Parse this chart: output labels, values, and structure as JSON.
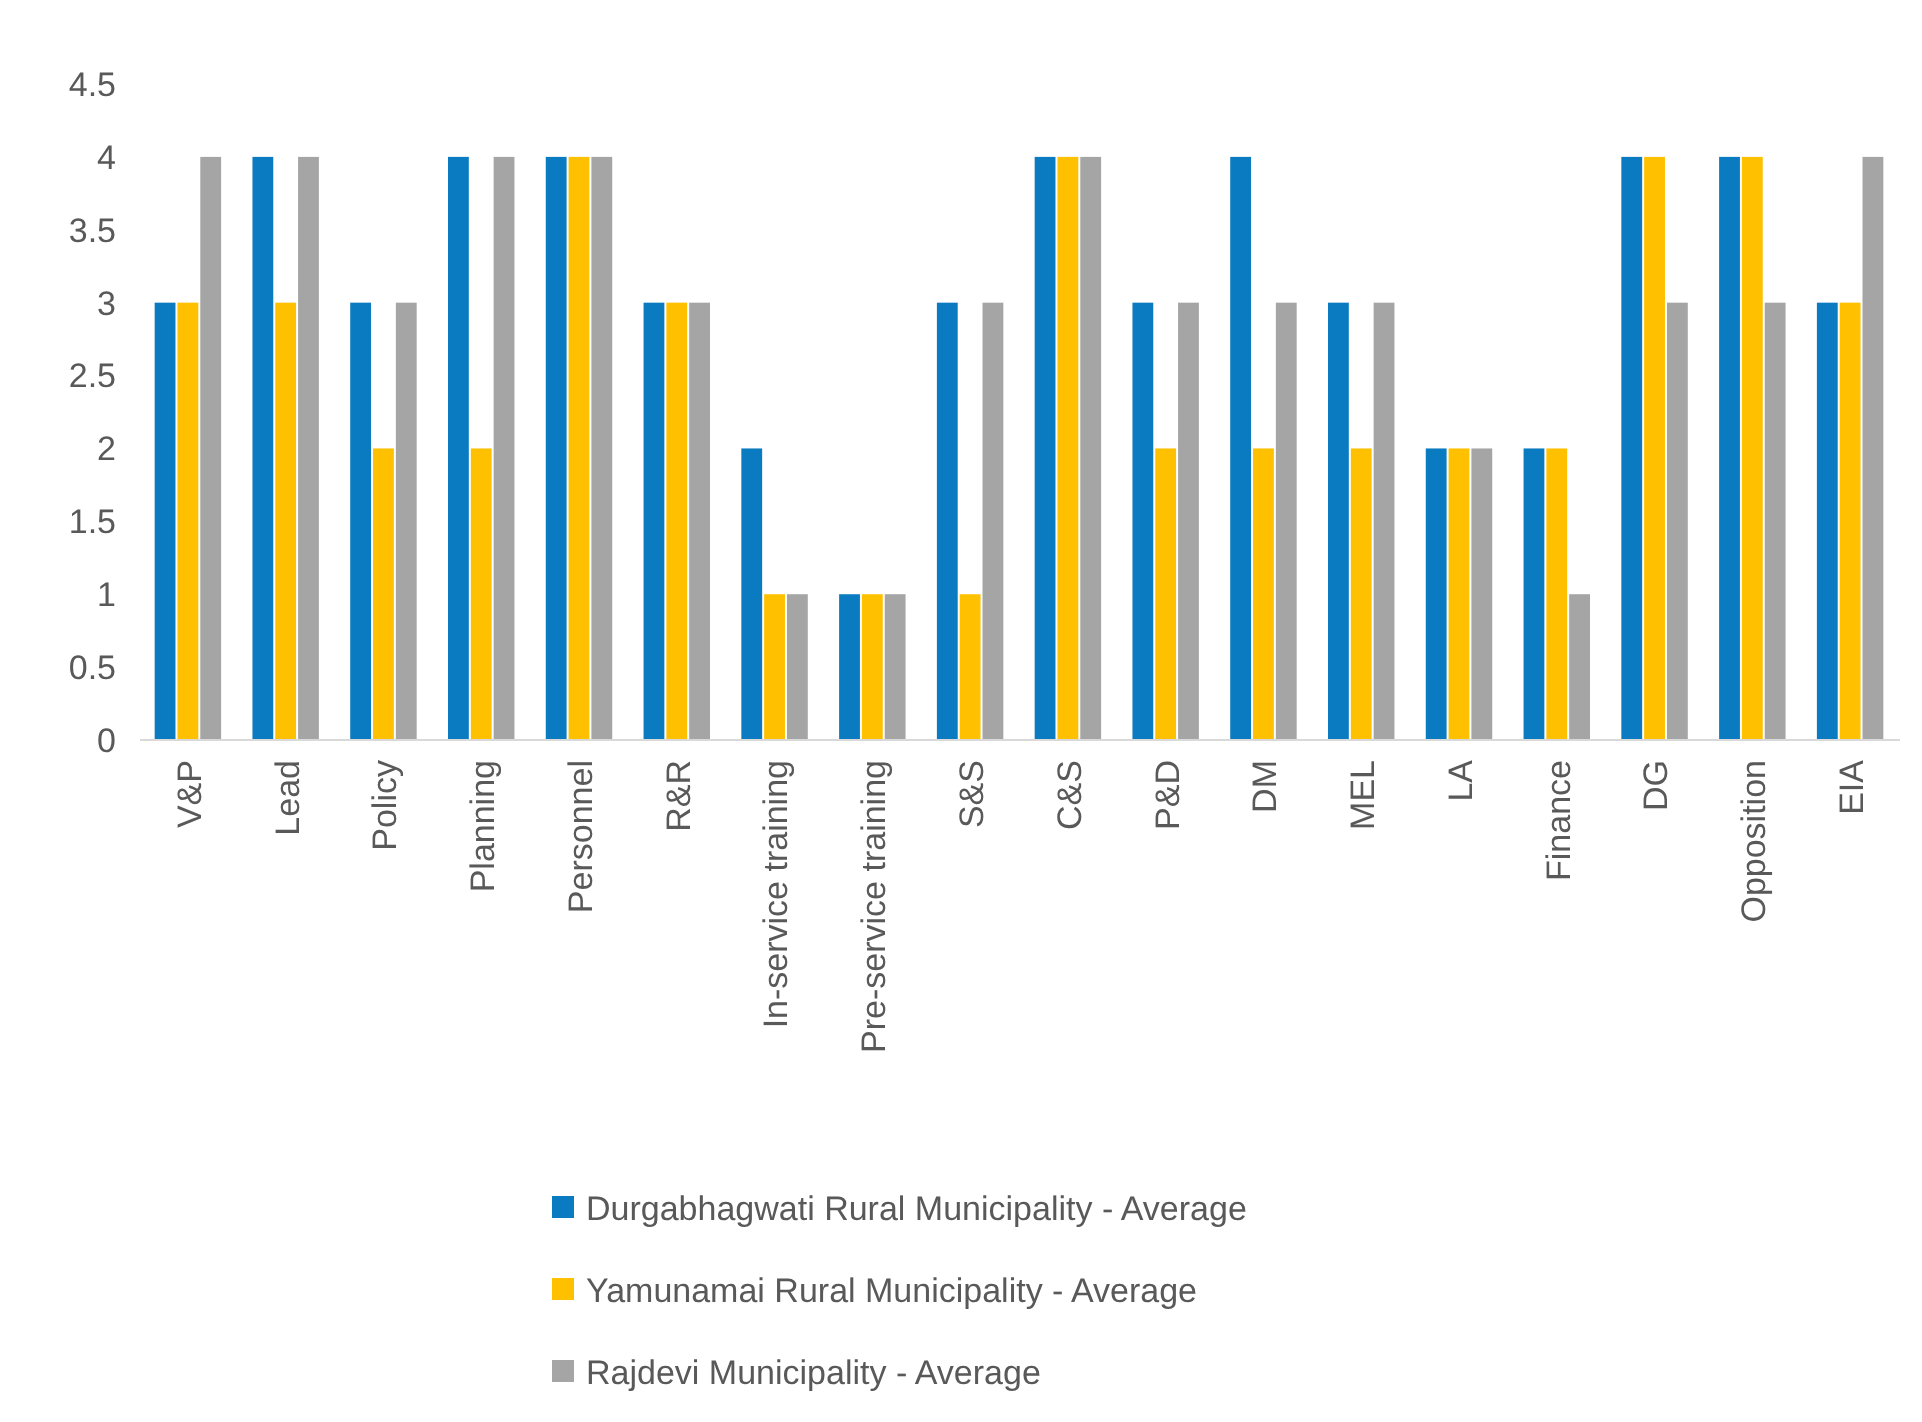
{
  "chart_data": {
    "type": "bar",
    "categories": [
      "V&P",
      "Lead",
      "Policy",
      "Planning",
      "Personnel",
      "R&R",
      "In-service training",
      "Pre-service training",
      "S&S",
      "C&S",
      "P&D",
      "DM",
      "MEL",
      "LA",
      "Finance",
      "DG",
      "Opposition",
      "EIA"
    ],
    "series": [
      {
        "name": "Durgabhagwati Rural Municipality  - Average",
        "color": "#0b7bc1",
        "values": [
          3,
          4,
          3,
          4,
          4,
          3,
          2,
          1,
          3,
          4,
          3,
          4,
          3,
          2,
          2,
          4,
          4,
          3
        ]
      },
      {
        "name": "Yamunamai Rural Municipality - Average",
        "color": "#ffc000",
        "values": [
          3,
          3,
          2,
          2,
          4,
          3,
          1,
          1,
          1,
          4,
          2,
          2,
          2,
          2,
          2,
          4,
          4,
          3
        ]
      },
      {
        "name": "Rajdevi Municipality - Average",
        "color": "#a5a5a5",
        "values": [
          4,
          4,
          3,
          4,
          4,
          3,
          1,
          1,
          3,
          4,
          3,
          3,
          3,
          2,
          1,
          3,
          3,
          4
        ]
      }
    ],
    "ylim": [
      0,
      4.5
    ],
    "yticks": [
      0,
      0.5,
      1,
      1.5,
      2,
      2.5,
      3,
      3.5,
      4,
      4.5
    ],
    "grid": false,
    "legend": "bottom"
  }
}
